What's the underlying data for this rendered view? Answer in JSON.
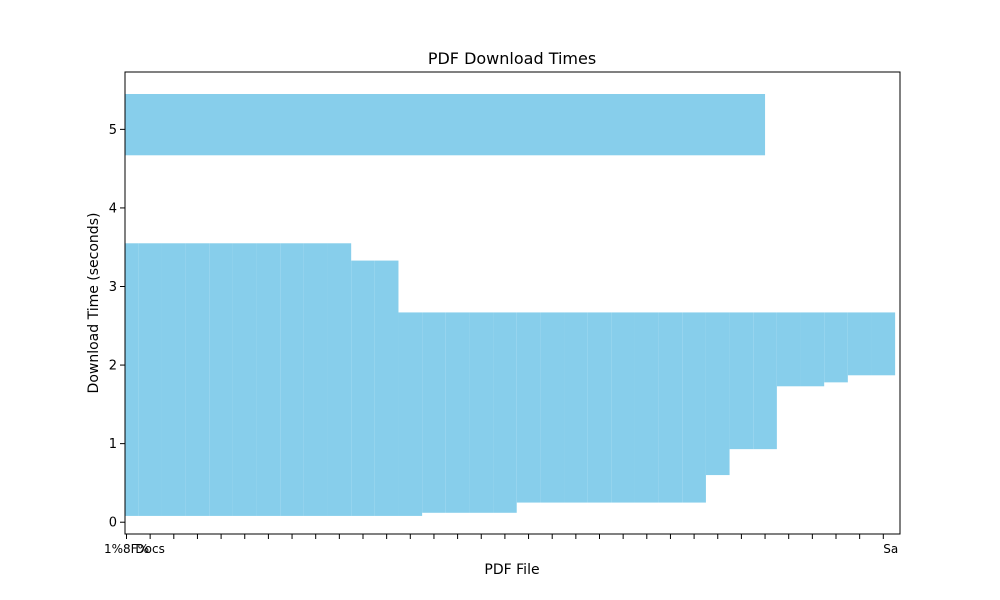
{
  "chart_data": {
    "type": "bar",
    "title": "PDF Download Times",
    "xlabel": "PDF File",
    "ylabel": "Download Time (seconds)",
    "ylim": [
      -0.15,
      5.73
    ],
    "yticks": [
      0,
      1,
      2,
      3,
      4,
      5
    ],
    "grid": false,
    "bar_color": "#87CEEB",
    "note": "",
    "categories": [
      "1%8F%",
      "Docs",
      "",
      "",
      "",
      "",
      "",
      "",
      "",
      "",
      "",
      "",
      "",
      "",
      "",
      "",
      "",
      "",
      "",
      "",
      "",
      "",
      "",
      "",
      "",
      "",
      "",
      "",
      "",
      "",
      "",
      "",
      "Sa"
    ],
    "values": [
      0.08,
      0.08,
      0.08,
      0.08,
      0.08,
      0.08,
      0.08,
      0.08,
      0.08,
      0.08,
      0.08,
      0.08,
      0.08,
      0.12,
      0.12,
      0.12,
      0.12,
      0.25,
      0.25,
      0.25,
      0.25,
      0.25,
      0.25,
      0.25,
      0.25,
      0.6,
      0.93,
      0.93,
      1.73,
      1.73,
      1.78,
      1.87,
      1.87
    ],
    "tops": [
      3.55,
      3.55,
      3.55,
      3.55,
      3.55,
      3.55,
      3.55,
      3.55,
      3.55,
      3.55,
      3.33,
      3.33,
      2.67,
      2.67,
      2.67,
      2.67,
      2.67,
      2.67,
      2.67,
      2.67,
      2.67,
      2.67,
      2.67,
      2.67,
      2.67,
      2.67,
      2.67,
      2.67,
      2.67,
      2.67,
      2.67,
      2.67,
      2.67
    ],
    "overlay_bar": {
      "label": "",
      "bottom": 4.67,
      "top": 5.45,
      "end_index": 27
    }
  }
}
